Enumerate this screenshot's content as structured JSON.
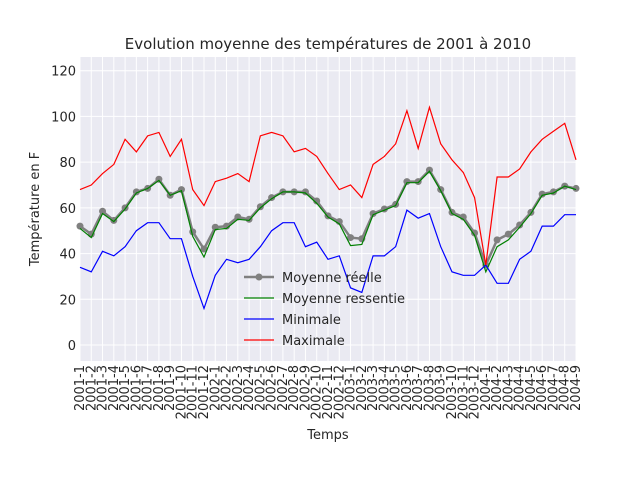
{
  "chart_data": {
    "type": "line",
    "title": "Evolution moyenne des températures de 2001 à 2010",
    "xlabel": "Temps",
    "ylabel": "Température en F",
    "ylim": [
      -7,
      126
    ],
    "yticks": [
      0,
      20,
      40,
      60,
      80,
      100,
      120
    ],
    "grid": true,
    "legend_position": "lower center",
    "categories": [
      "2001-1",
      "2001-2",
      "2001-3",
      "2001-4",
      "2001-5",
      "2001-6",
      "2001-7",
      "2001-8",
      "2001-9",
      "2001-10",
      "2001-11",
      "2001-12",
      "2002-1",
      "2002-2",
      "2002-3",
      "2002-4",
      "2002-5",
      "2002-6",
      "2002-7",
      "2002-8",
      "2002-9",
      "2002-10",
      "2002-11",
      "2002-12",
      "2003-1",
      "2003-2",
      "2003-3",
      "2003-4",
      "2003-5",
      "2003-6",
      "2003-7",
      "2003-8",
      "2003-9",
      "2003-10",
      "2003-11",
      "2003-12",
      "2004-1",
      "2004-2",
      "2004-3",
      "2004-4",
      "2004-5",
      "2004-6",
      "2004-7",
      "2004-8",
      "2004-9"
    ],
    "series": [
      {
        "name": "Moyenne réelle",
        "color": "#808080",
        "marker": true,
        "values": [
          52,
          48.5,
          58.5,
          54.5,
          60,
          67,
          68.5,
          72.5,
          65.5,
          68,
          49.5,
          42,
          51.5,
          52,
          56,
          55,
          60.5,
          64.5,
          67,
          67,
          67,
          63,
          56.5,
          54,
          47,
          46.5,
          57.5,
          59.5,
          61.5,
          71.5,
          71.5,
          76.5,
          68,
          58,
          56,
          49,
          35,
          46,
          48.5,
          52.5,
          58,
          66,
          67,
          69.5,
          68.5
        ]
      },
      {
        "name": "Moyenne ressentie",
        "color": "#008000",
        "marker": false,
        "values": [
          51,
          47,
          57.5,
          54,
          59.5,
          66.5,
          68.5,
          72,
          65.5,
          67.5,
          47.5,
          38.5,
          50.5,
          51,
          55,
          54.5,
          60,
          64,
          67,
          67,
          66.5,
          62,
          56,
          53,
          43.5,
          44,
          57,
          59,
          61,
          71,
          71,
          76,
          67.5,
          57.5,
          55,
          48,
          32,
          43,
          46,
          51.5,
          57.5,
          65.5,
          66.5,
          69.5,
          68
        ]
      },
      {
        "name": "Minimale",
        "color": "#0000ff",
        "marker": false,
        "values": [
          34,
          32,
          41,
          39,
          43,
          50,
          53.5,
          53.5,
          46.5,
          46.5,
          30,
          16,
          30.5,
          37.5,
          36,
          37.5,
          43,
          50,
          53.5,
          53.5,
          43,
          45,
          37.5,
          39,
          25,
          23,
          39,
          39,
          43,
          59,
          55.5,
          57.5,
          43,
          32,
          30.5,
          30.5,
          35,
          27,
          27,
          37.5,
          41,
          52,
          52,
          57,
          57
        ]
      },
      {
        "name": "Maximale",
        "color": "#ff0000",
        "marker": false,
        "values": [
          68,
          70,
          75,
          79,
          90,
          84.5,
          91.5,
          93,
          82.5,
          90,
          68,
          61,
          71.5,
          73,
          75,
          71.5,
          91.5,
          93,
          91.5,
          84.5,
          86,
          82.5,
          75,
          68,
          70,
          64.5,
          79,
          82.5,
          88,
          102.5,
          86,
          104,
          88,
          81,
          75.5,
          64.5,
          35,
          73.5,
          73.5,
          77,
          84.5,
          90,
          93.5,
          97,
          81
        ]
      }
    ]
  }
}
